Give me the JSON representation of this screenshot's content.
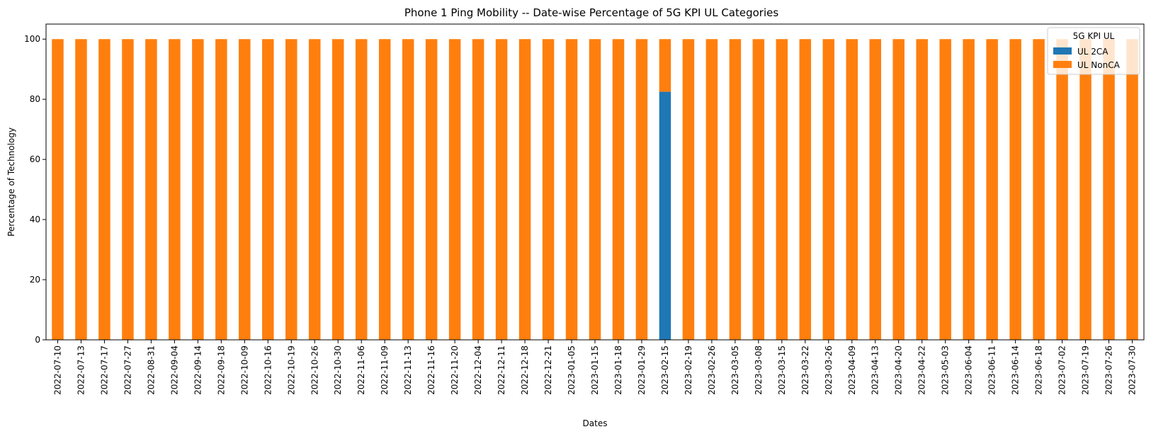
{
  "chart_data": {
    "type": "bar",
    "stacked": true,
    "title": "Phone 1 Ping Mobility -- Date-wise Percentage of 5G KPI UL Categories",
    "xlabel": "Dates",
    "ylabel": "Percentage of Technology",
    "ylim": [
      0,
      105
    ],
    "yticks": [
      0,
      20,
      40,
      60,
      80,
      100
    ],
    "grid": false,
    "legend": {
      "title": "5G KPI UL",
      "placement": "top-right"
    },
    "categories": [
      "2022-07-10",
      "2022-07-13",
      "2022-07-17",
      "2022-07-27",
      "2022-08-31",
      "2022-09-04",
      "2022-09-14",
      "2022-09-18",
      "2022-10-09",
      "2022-10-16",
      "2022-10-19",
      "2022-10-26",
      "2022-10-30",
      "2022-11-06",
      "2022-11-09",
      "2022-11-13",
      "2022-11-16",
      "2022-11-20",
      "2022-12-04",
      "2022-12-11",
      "2022-12-18",
      "2022-12-21",
      "2023-01-05",
      "2023-01-15",
      "2023-01-18",
      "2023-01-29",
      "2023-02-15",
      "2023-02-19",
      "2023-02-26",
      "2023-03-05",
      "2023-03-08",
      "2023-03-15",
      "2023-03-22",
      "2023-03-26",
      "2023-04-09",
      "2023-04-13",
      "2023-04-20",
      "2023-04-22",
      "2023-05-03",
      "2023-06-04",
      "2023-06-11",
      "2023-06-14",
      "2023-06-18",
      "2023-07-02",
      "2023-07-19",
      "2023-07-26",
      "2023-07-30"
    ],
    "series": [
      {
        "name": "UL 2CA",
        "color": "#1f77b4",
        "values": [
          0,
          0,
          0,
          0,
          0,
          0,
          0,
          0,
          0,
          0,
          0,
          0,
          0,
          0,
          0,
          0,
          0,
          0,
          0,
          0,
          0,
          0,
          0,
          0,
          0,
          0,
          82.5,
          0,
          0,
          0,
          0,
          0,
          0,
          0,
          0,
          0,
          0,
          0,
          0,
          0,
          0,
          0,
          0,
          0,
          0,
          0,
          0
        ]
      },
      {
        "name": "UL NonCA",
        "color": "#ff7f0e",
        "values": [
          100,
          100,
          100,
          100,
          100,
          100,
          100,
          100,
          100,
          100,
          100,
          100,
          100,
          100,
          100,
          100,
          100,
          100,
          100,
          100,
          100,
          100,
          100,
          100,
          100,
          100,
          17.5,
          100,
          100,
          100,
          100,
          100,
          100,
          100,
          100,
          100,
          100,
          100,
          100,
          100,
          100,
          100,
          100,
          100,
          100,
          100,
          100
        ]
      }
    ]
  }
}
